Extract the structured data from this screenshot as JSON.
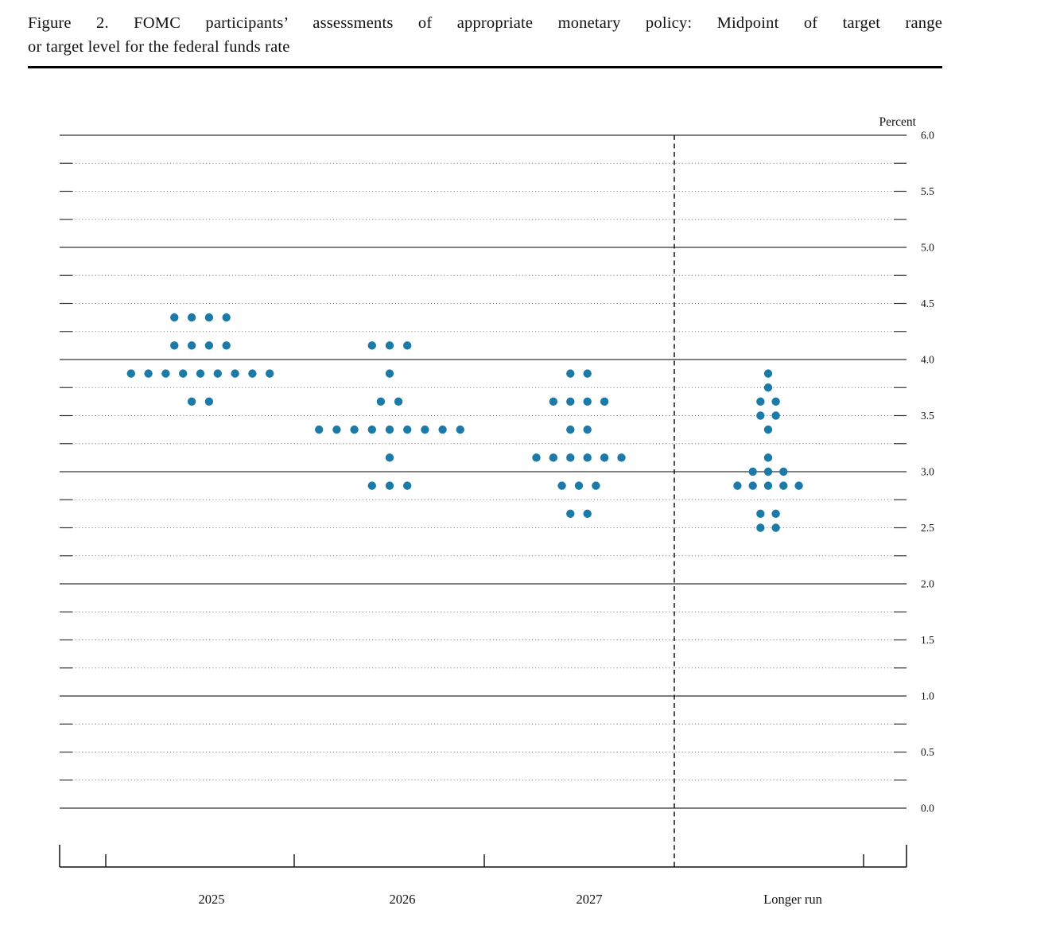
{
  "figure": {
    "title_line1": "Figure 2.  FOMC participants’ assessments of appropriate monetary policy:  Midpoint of target range",
    "title_line2": "or target level for the federal funds rate"
  },
  "chart_data": {
    "type": "scatter",
    "subtype": "fomc-dot-plot",
    "title": "Figure 2. FOMC participants’ assessments of appropriate monetary policy: Midpoint of target range or target level for the federal funds rate",
    "ylabel": "Percent",
    "xlabel": "",
    "ylim": [
      0.0,
      6.0
    ],
    "y_gridline_step": 0.25,
    "solid_gridline_values": [
      0.0,
      1.0,
      2.0,
      3.0,
      4.0,
      5.0,
      6.0
    ],
    "grid": true,
    "legend": "none",
    "y_ticks": [
      {
        "value": 6.0,
        "label": "6.0"
      },
      {
        "value": 5.5,
        "label": "5.5"
      },
      {
        "value": 5.0,
        "label": "5.0"
      },
      {
        "value": 4.5,
        "label": "4.5"
      },
      {
        "value": 4.0,
        "label": "4.0"
      },
      {
        "value": 3.5,
        "label": "3.5"
      },
      {
        "value": 3.0,
        "label": "3.0"
      },
      {
        "value": 2.5,
        "label": "2.5"
      },
      {
        "value": 2.0,
        "label": "2.0"
      },
      {
        "value": 1.5,
        "label": "1.5"
      },
      {
        "value": 1.0,
        "label": "1.0"
      },
      {
        "value": 0.5,
        "label": "0.5"
      },
      {
        "value": 0.0,
        "label": "0.0"
      }
    ],
    "categories": [
      "2025",
      "2026",
      "2027",
      "Longer run"
    ],
    "separator": {
      "style": "dashed-vertical",
      "between": [
        "2027",
        "Longer run"
      ]
    },
    "dot_color": "#1c7aa8",
    "series": [
      {
        "category": "2025",
        "dots": [
          {
            "rate": 4.375,
            "count": 4
          },
          {
            "rate": 4.125,
            "count": 4
          },
          {
            "rate": 3.875,
            "count": 9
          },
          {
            "rate": 3.625,
            "count": 2
          }
        ]
      },
      {
        "category": "2026",
        "dots": [
          {
            "rate": 4.125,
            "count": 3
          },
          {
            "rate": 3.875,
            "count": 1
          },
          {
            "rate": 3.625,
            "count": 2
          },
          {
            "rate": 3.375,
            "count": 9
          },
          {
            "rate": 3.125,
            "count": 1
          },
          {
            "rate": 2.875,
            "count": 3
          }
        ]
      },
      {
        "category": "2027",
        "dots": [
          {
            "rate": 3.875,
            "count": 2
          },
          {
            "rate": 3.625,
            "count": 4
          },
          {
            "rate": 3.375,
            "count": 2
          },
          {
            "rate": 3.125,
            "count": 6
          },
          {
            "rate": 2.875,
            "count": 3
          },
          {
            "rate": 2.625,
            "count": 2
          }
        ]
      },
      {
        "category": "Longer run",
        "dots": [
          {
            "rate": 3.875,
            "count": 1
          },
          {
            "rate": 3.75,
            "count": 1
          },
          {
            "rate": 3.625,
            "count": 2
          },
          {
            "rate": 3.5,
            "count": 2
          },
          {
            "rate": 3.375,
            "count": 1
          },
          {
            "rate": 3.125,
            "count": 1
          },
          {
            "rate": 3.0,
            "count": 3
          },
          {
            "rate": 2.875,
            "count": 5
          },
          {
            "rate": 2.625,
            "count": 2
          },
          {
            "rate": 2.5,
            "count": 2
          }
        ]
      }
    ]
  }
}
